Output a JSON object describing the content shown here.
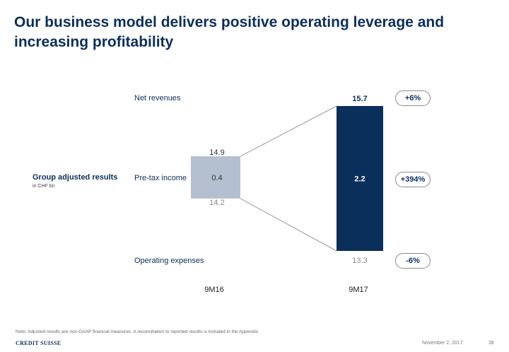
{
  "slide": {
    "title": "Our business model delivers positive operating leverage and increasing profitability",
    "side_label": "Group adjusted results",
    "side_sub": "in CHF bn",
    "row_labels": {
      "net_revenues": "Net revenues",
      "pre_tax_income": "Pre-tax income",
      "operating_expenses": "Operating expenses"
    },
    "changes": {
      "net_revenues": "+6%",
      "pre_tax_income": "+394%",
      "operating_expenses": "-6%"
    },
    "note": "Note: Adjusted results are non-GAAP financial measures. A reconciliation to reported results is included in the Appendix",
    "date": "November 2, 2017",
    "page_number": "38",
    "logo": "CREDIT SUISSE"
  },
  "colors": {
    "title": "#0b2f5b",
    "bar_9m17": "#0b2f5b",
    "bar_9m16": "#b4c0d0",
    "connector": "#9a9a9a"
  },
  "chart_data": {
    "type": "bar",
    "categories": [
      "9M16",
      "9M17"
    ],
    "series": [
      {
        "values": [
          14.9,
          15.7
        ]
      },
      {
        "values": [
          14.2,
          13.3
        ]
      },
      {
        "values": [
          0.4,
          2.2
        ]
      }
    ],
    "labels": {
      "revenue": [
        "14.9",
        "15.7"
      ],
      "expenses": [
        "14.2",
        "13.3"
      ],
      "income": [
        "0.4",
        "2.2"
      ]
    }
  }
}
